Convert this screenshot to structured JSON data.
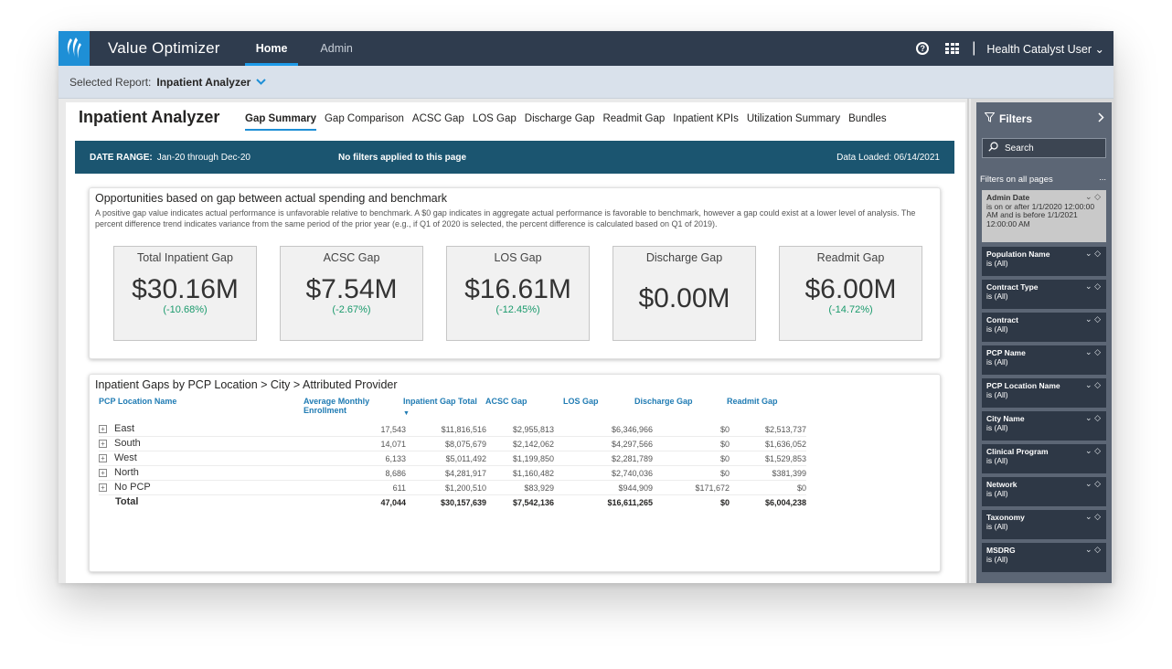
{
  "topbar": {
    "app_title": "Value Optimizer",
    "nav": [
      {
        "label": "Home",
        "active": true
      },
      {
        "label": "Admin",
        "active": false
      }
    ],
    "help_icon": "?",
    "user_menu": "Health Catalyst User ⌄"
  },
  "subbar": {
    "label": "Selected Report:",
    "report": "Inpatient Analyzer"
  },
  "page": {
    "title": "Inpatient Analyzer",
    "tabs": [
      {
        "label": "Gap Summary",
        "active": true
      },
      {
        "label": "Gap Comparison"
      },
      {
        "label": "ACSC Gap"
      },
      {
        "label": "LOS Gap"
      },
      {
        "label": "Discharge Gap"
      },
      {
        "label": "Readmit Gap"
      },
      {
        "label": "Inpatient KPIs"
      },
      {
        "label": "Utilization Summary"
      },
      {
        "label": "Bundles"
      }
    ]
  },
  "banner": {
    "date_label": "DATE RANGE:",
    "date_value": "Jan-20 through Dec-20",
    "filters_note": "No filters applied to this page",
    "loaded": "Data Loaded: 06/14/2021"
  },
  "opportunities": {
    "title": "Opportunities based on gap between actual spending and benchmark",
    "description": "A positive gap value indicates actual performance is unfavorable relative to benchmark. A $0 gap indicates in aggregate actual performance is favorable to benchmark, however a gap could exist at a lower level of analysis. The percent difference trend indicates variance from the same period of the prior year (e.g., if Q1 of 2020 is selected, the percent difference is calculated based on Q1 of 2019).",
    "kpis": [
      {
        "label": "Total Inpatient Gap",
        "value": "$30.16M",
        "pct": "(-10.68%)"
      },
      {
        "label": "ACSC Gap",
        "value": "$7.54M",
        "pct": "(-2.67%)"
      },
      {
        "label": "LOS Gap",
        "value": "$16.61M",
        "pct": "(-12.45%)"
      },
      {
        "label": "Discharge Gap",
        "value": "$0.00M",
        "pct": ""
      },
      {
        "label": "Readmit Gap",
        "value": "$6.00M",
        "pct": "(-14.72%)"
      }
    ]
  },
  "gaps_table": {
    "title": "Inpatient Gaps by PCP Location > City > Attributed Provider",
    "headers": {
      "location": "PCP Location Name",
      "enroll": "Average Monthly Enrollment",
      "total": "Inpatient Gap Total",
      "acsc": "ACSC Gap",
      "los": "LOS Gap",
      "discharge": "Discharge Gap",
      "readmit": "Readmit Gap"
    },
    "sort_indicator": "▼",
    "expand_icon": "+",
    "rows": [
      {
        "name": "East",
        "enroll": "17,543",
        "total": "$11,816,516",
        "acsc": "$2,955,813",
        "los": "$6,346,966",
        "discharge": "$0",
        "readmit": "$2,513,737"
      },
      {
        "name": "South",
        "enroll": "14,071",
        "total": "$8,075,679",
        "acsc": "$2,142,062",
        "los": "$4,297,566",
        "discharge": "$0",
        "readmit": "$1,636,052"
      },
      {
        "name": "West",
        "enroll": "6,133",
        "total": "$5,011,492",
        "acsc": "$1,199,850",
        "los": "$2,281,789",
        "discharge": "$0",
        "readmit": "$1,529,853"
      },
      {
        "name": "North",
        "enroll": "8,686",
        "total": "$4,281,917",
        "acsc": "$1,160,482",
        "los": "$2,740,036",
        "discharge": "$0",
        "readmit": "$381,399"
      },
      {
        "name": "No PCP",
        "enroll": "611",
        "total": "$1,200,510",
        "acsc": "$83,929",
        "los": "$944,909",
        "discharge": "$171,672",
        "readmit": "$0"
      }
    ],
    "total_row": {
      "name": "Total",
      "enroll": "47,044",
      "total": "$30,157,639",
      "acsc": "$7,542,136",
      "los": "$16,611,265",
      "discharge": "$0",
      "readmit": "$6,004,238"
    }
  },
  "filters": {
    "title": "Filters",
    "search_placeholder": "Search",
    "section": "Filters on all pages",
    "more": "...",
    "items": [
      {
        "name": "Admin Date",
        "value": "is on or after 1/1/2020 12:00:00 AM and is before 1/1/2021 12:00:00 AM"
      },
      {
        "name": "Population Name",
        "value": "is (All)"
      },
      {
        "name": "Contract Type",
        "value": "is (All)"
      },
      {
        "name": "Contract",
        "value": "is (All)"
      },
      {
        "name": "PCP Name",
        "value": "is (All)"
      },
      {
        "name": "PCP Location Name",
        "value": "is (All)"
      },
      {
        "name": "City Name",
        "value": "is (All)"
      },
      {
        "name": "Clinical Program",
        "value": "is (All)"
      },
      {
        "name": "Network",
        "value": "is (All)"
      },
      {
        "name": "Taxonomy",
        "value": "is (All)"
      },
      {
        "name": "MSDRG",
        "value": "is (All)"
      }
    ]
  },
  "colors": {
    "topbar": "#2f3c4e",
    "accent": "#1e8fd6",
    "banner": "#1b5570",
    "positive": "#1a9a6c",
    "filters_panel": "#5c6675"
  }
}
